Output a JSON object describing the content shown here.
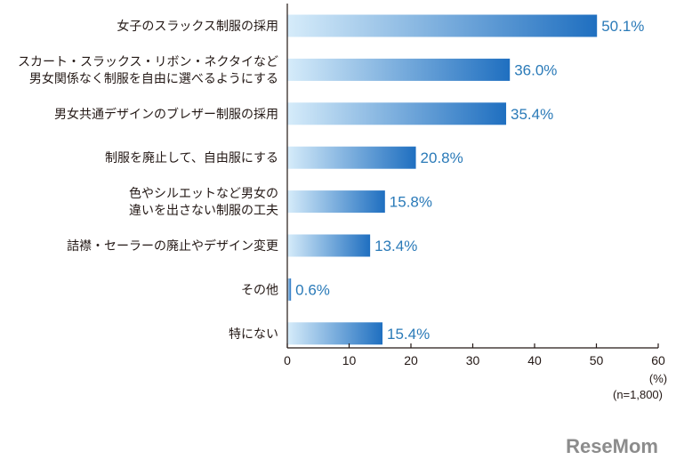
{
  "chart_data": {
    "type": "bar",
    "orientation": "horizontal",
    "categories": [
      [
        "女子のスラックス制服の採用"
      ],
      [
        "スカート・スラックス・リボン・ネクタイなど",
        "男女関係なく制服を自由に選べるようにする"
      ],
      [
        "男女共通デザインのブレザー制服の採用"
      ],
      [
        "制服を廃止して、自由服にする"
      ],
      [
        "色やシルエットなど男女の",
        "違いを出さない制服の工夫"
      ],
      [
        "詰襟・セーラーの廃止やデザイン変更"
      ],
      [
        "その他"
      ],
      [
        "特にない"
      ]
    ],
    "values": [
      50.1,
      36.0,
      35.4,
      20.8,
      15.8,
      13.4,
      0.6,
      15.4
    ],
    "value_labels": [
      "50.1%",
      "36.0%",
      "35.4%",
      "20.8%",
      "15.8%",
      "13.4%",
      "0.6%",
      "15.4%"
    ],
    "xlim": [
      0,
      60
    ],
    "xticks": [
      0,
      10,
      20,
      30,
      40,
      50,
      60
    ],
    "unit_label": "(%)",
    "sample_note": "(n=1,800)",
    "grid": false,
    "legend": "none",
    "colors": {
      "bar_light": "#d6ecfa",
      "bar_dark": "#1f6fc0",
      "value_text": "#2a7ab8",
      "axis": "#231815"
    }
  },
  "watermark": "ReseMom"
}
